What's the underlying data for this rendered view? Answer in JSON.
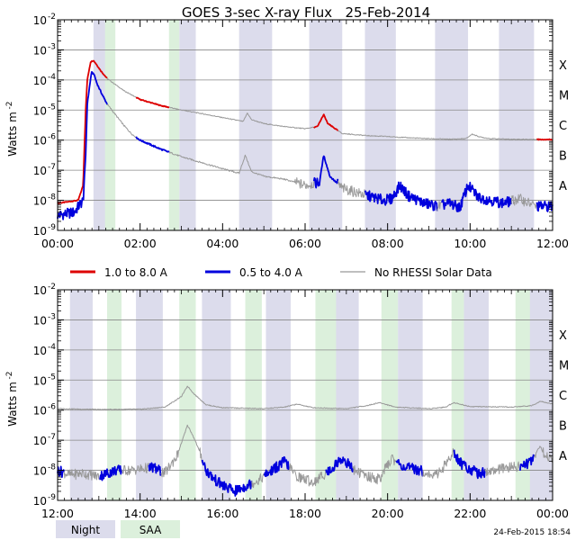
{
  "chart_data": [
    {
      "type": "line",
      "title": "GOES 3-sec X-ray Flux   25-Feb-2014",
      "ylabel": "Watts m",
      "ylabel_exp": "-2",
      "yscale": "log",
      "ylim_exp": [
        -9,
        -2
      ],
      "y_ticks": [
        {
          "base": "10",
          "exp": "-2"
        },
        {
          "base": "10",
          "exp": "-3"
        },
        {
          "base": "10",
          "exp": "-4"
        },
        {
          "base": "10",
          "exp": "-5"
        },
        {
          "base": "10",
          "exp": "-6"
        },
        {
          "base": "10",
          "exp": "-7"
        },
        {
          "base": "10",
          "exp": "-8"
        },
        {
          "base": "10",
          "exp": "-9"
        }
      ],
      "flare_classes": [
        {
          "label": "X",
          "exp": -4
        },
        {
          "label": "M",
          "exp": -5
        },
        {
          "label": "C",
          "exp": -6
        },
        {
          "label": "B",
          "exp": -7
        },
        {
          "label": "A",
          "exp": -8
        }
      ],
      "xlim_hours": [
        0,
        12
      ],
      "x_ticks": [
        "00:00",
        "02:00",
        "04:00",
        "06:00",
        "08:00",
        "10:00",
        "12:00"
      ],
      "night_bands": [
        [
          0.87,
          1.3
        ],
        [
          2.95,
          3.35
        ],
        [
          4.4,
          5.2
        ],
        [
          6.1,
          6.9
        ],
        [
          7.45,
          8.2
        ],
        [
          9.15,
          9.95
        ],
        [
          10.7,
          11.55
        ]
      ],
      "saa_bands": [
        [
          1.15,
          1.4
        ],
        [
          2.7,
          2.95
        ]
      ],
      "series": [
        {
          "name": "1.0 to 8.0 A",
          "color": "#dd0000",
          "nodata_color": "#999999",
          "points": [
            [
              0.0,
              -8.1
            ],
            [
              0.5,
              -8.0
            ],
            [
              0.62,
              -7.5
            ],
            [
              0.68,
              -5.0
            ],
            [
              0.72,
              -4.0
            ],
            [
              0.8,
              -3.4
            ],
            [
              0.87,
              -3.35
            ],
            [
              0.95,
              -3.5
            ],
            [
              1.05,
              -3.7
            ],
            [
              1.2,
              -3.95
            ],
            [
              1.4,
              -4.15
            ],
            [
              1.6,
              -4.35
            ],
            [
              1.8,
              -4.5
            ],
            [
              2.0,
              -4.65
            ],
            [
              2.5,
              -4.85
            ],
            [
              3.0,
              -5.0
            ],
            [
              3.5,
              -5.12
            ],
            [
              4.0,
              -5.25
            ],
            [
              4.5,
              -5.38
            ],
            [
              4.6,
              -5.1
            ],
            [
              4.7,
              -5.32
            ],
            [
              5.0,
              -5.45
            ],
            [
              5.5,
              -5.55
            ],
            [
              6.0,
              -5.62
            ],
            [
              6.3,
              -5.55
            ],
            [
              6.45,
              -5.15
            ],
            [
              6.55,
              -5.45
            ],
            [
              6.9,
              -5.78
            ],
            [
              7.5,
              -5.85
            ],
            [
              8.0,
              -5.88
            ],
            [
              8.5,
              -5.92
            ],
            [
              9.0,
              -5.95
            ],
            [
              9.5,
              -5.97
            ],
            [
              9.9,
              -5.95
            ],
            [
              10.05,
              -5.8
            ],
            [
              10.25,
              -5.9
            ],
            [
              10.5,
              -5.95
            ],
            [
              11.0,
              -5.97
            ],
            [
              12.0,
              -5.98
            ]
          ],
          "nodata": [
            [
              1.2,
              1.9
            ],
            [
              2.7,
              6.2
            ],
            [
              6.8,
              11.6
            ]
          ]
        },
        {
          "name": "0.5 to 4.0 A",
          "color": "#0000dd",
          "nodata_color": "#999999",
          "points": [
            [
              0.0,
              -8.5
            ],
            [
              0.4,
              -8.4
            ],
            [
              0.62,
              -8.0
            ],
            [
              0.68,
              -6.5
            ],
            [
              0.72,
              -4.8
            ],
            [
              0.82,
              -3.75
            ],
            [
              0.88,
              -3.8
            ],
            [
              0.95,
              -4.1
            ],
            [
              1.05,
              -4.4
            ],
            [
              1.2,
              -4.8
            ],
            [
              1.4,
              -5.15
            ],
            [
              1.6,
              -5.5
            ],
            [
              1.8,
              -5.8
            ],
            [
              2.0,
              -6.0
            ],
            [
              2.5,
              -6.3
            ],
            [
              3.0,
              -6.55
            ],
            [
              3.5,
              -6.75
            ],
            [
              4.0,
              -6.95
            ],
            [
              4.4,
              -7.1
            ],
            [
              4.55,
              -6.5
            ],
            [
              4.7,
              -7.05
            ],
            [
              5.0,
              -7.2
            ],
            [
              5.5,
              -7.3
            ],
            [
              6.0,
              -7.5
            ],
            [
              6.35,
              -7.4
            ],
            [
              6.45,
              -6.5
            ],
            [
              6.6,
              -7.2
            ],
            [
              6.9,
              -7.6
            ],
            [
              7.4,
              -7.8
            ],
            [
              7.9,
              -8.0
            ],
            [
              8.1,
              -7.95
            ],
            [
              8.3,
              -7.5
            ],
            [
              8.5,
              -7.85
            ],
            [
              8.9,
              -8.1
            ],
            [
              9.2,
              -8.2
            ],
            [
              9.5,
              -8.1
            ],
            [
              9.75,
              -8.25
            ],
            [
              9.95,
              -7.5
            ],
            [
              10.2,
              -7.9
            ],
            [
              10.5,
              -8.0
            ],
            [
              10.8,
              -8.1
            ],
            [
              11.2,
              -7.95
            ],
            [
              11.6,
              -8.2
            ],
            [
              12.0,
              -8.2
            ]
          ],
          "nodata": [
            [
              1.2,
              1.9
            ],
            [
              2.7,
              6.2
            ],
            [
              6.8,
              7.45
            ],
            [
              9.2,
              9.3
            ],
            [
              11.0,
              11.6
            ]
          ]
        }
      ]
    },
    {
      "type": "line",
      "title": "",
      "ylabel": "Watts m",
      "ylabel_exp": "-2",
      "yscale": "log",
      "ylim_exp": [
        -9,
        -2
      ],
      "y_ticks": [
        {
          "base": "10",
          "exp": "-2"
        },
        {
          "base": "10",
          "exp": "-3"
        },
        {
          "base": "10",
          "exp": "-4"
        },
        {
          "base": "10",
          "exp": "-5"
        },
        {
          "base": "10",
          "exp": "-6"
        },
        {
          "base": "10",
          "exp": "-7"
        },
        {
          "base": "10",
          "exp": "-8"
        },
        {
          "base": "10",
          "exp": "-9"
        }
      ],
      "flare_classes": [
        {
          "label": "X",
          "exp": -4
        },
        {
          "label": "M",
          "exp": -5
        },
        {
          "label": "C",
          "exp": -6
        },
        {
          "label": "B",
          "exp": -7
        },
        {
          "label": "A",
          "exp": -8
        }
      ],
      "xlim_hours": [
        12,
        24
      ],
      "x_ticks": [
        "12:00",
        "14:00",
        "16:00",
        "18:00",
        "20:00",
        "22:00",
        "00:00"
      ],
      "night_bands": [
        [
          12.3,
          12.85
        ],
        [
          13.9,
          14.55
        ],
        [
          15.5,
          16.2
        ],
        [
          17.05,
          17.65
        ],
        [
          18.6,
          19.3
        ],
        [
          20.25,
          20.85
        ],
        [
          21.85,
          22.45
        ],
        [
          23.4,
          24.0
        ]
      ],
      "saa_bands": [
        [
          13.2,
          13.55
        ],
        [
          14.95,
          15.35
        ],
        [
          16.55,
          16.95
        ],
        [
          18.25,
          18.75
        ],
        [
          19.85,
          20.25
        ],
        [
          21.55,
          21.85
        ],
        [
          23.1,
          23.45
        ]
      ],
      "series": [
        {
          "name": "1.0 to 8.0 A",
          "color": "#dd0000",
          "nodata_color": "#999999",
          "points": [
            [
              12.0,
              -5.95
            ],
            [
              13.0,
              -5.98
            ],
            [
              14.0,
              -5.97
            ],
            [
              14.6,
              -5.9
            ],
            [
              15.0,
              -5.55
            ],
            [
              15.15,
              -5.2
            ],
            [
              15.3,
              -5.45
            ],
            [
              15.6,
              -5.82
            ],
            [
              16.0,
              -5.92
            ],
            [
              17.0,
              -5.95
            ],
            [
              17.5,
              -5.9
            ],
            [
              17.8,
              -5.8
            ],
            [
              18.2,
              -5.92
            ],
            [
              19.0,
              -5.95
            ],
            [
              19.5,
              -5.85
            ],
            [
              19.8,
              -5.75
            ],
            [
              20.2,
              -5.9
            ],
            [
              21.0,
              -5.95
            ],
            [
              21.4,
              -5.9
            ],
            [
              21.6,
              -5.75
            ],
            [
              22.0,
              -5.88
            ],
            [
              23.0,
              -5.9
            ],
            [
              23.5,
              -5.85
            ],
            [
              23.7,
              -5.7
            ],
            [
              24.0,
              -5.8
            ]
          ],
          "nodata": [
            [
              12.0,
              24.0
            ]
          ]
        },
        {
          "name": "0.5 to 4.0 A",
          "color": "#0000dd",
          "nodata_color": "#999999",
          "points": [
            [
              12.0,
              -8.0
            ],
            [
              12.3,
              -8.15
            ],
            [
              12.6,
              -8.1
            ],
            [
              13.0,
              -8.2
            ],
            [
              13.4,
              -8.0
            ],
            [
              13.8,
              -8.0
            ],
            [
              14.3,
              -7.9
            ],
            [
              14.6,
              -8.1
            ],
            [
              14.9,
              -7.5
            ],
            [
              15.05,
              -6.9
            ],
            [
              15.15,
              -6.5
            ],
            [
              15.3,
              -6.9
            ],
            [
              15.45,
              -7.4
            ],
            [
              15.6,
              -8.0
            ],
            [
              15.8,
              -8.3
            ],
            [
              16.0,
              -8.5
            ],
            [
              16.3,
              -8.7
            ],
            [
              16.6,
              -8.5
            ],
            [
              16.9,
              -8.3
            ],
            [
              17.2,
              -8.0
            ],
            [
              17.5,
              -7.7
            ],
            [
              17.8,
              -8.2
            ],
            [
              18.2,
              -8.4
            ],
            [
              18.6,
              -8.0
            ],
            [
              18.9,
              -7.6
            ],
            [
              19.2,
              -8.0
            ],
            [
              19.5,
              -8.2
            ],
            [
              19.8,
              -8.3
            ],
            [
              20.1,
              -7.6
            ],
            [
              20.4,
              -7.9
            ],
            [
              20.8,
              -8.0
            ],
            [
              21.1,
              -8.2
            ],
            [
              21.3,
              -8.0
            ],
            [
              21.6,
              -7.4
            ],
            [
              21.8,
              -7.8
            ],
            [
              22.2,
              -8.1
            ],
            [
              22.6,
              -8.0
            ],
            [
              23.0,
              -7.9
            ],
            [
              23.4,
              -7.8
            ],
            [
              23.7,
              -7.2
            ],
            [
              23.8,
              -7.5
            ],
            [
              24.0,
              -7.6
            ]
          ],
          "nodata": [
            [
              12.15,
              13.0
            ],
            [
              13.55,
              14.2
            ],
            [
              14.5,
              15.5
            ],
            [
              16.7,
              17.0
            ],
            [
              17.6,
              18.5
            ],
            [
              19.15,
              20.2
            ],
            [
              20.85,
              21.6
            ],
            [
              22.35,
              23.2
            ],
            [
              23.55,
              24.0
            ]
          ]
        }
      ]
    }
  ],
  "legend": [
    {
      "label": "1.0 to 8.0 A",
      "color": "#dd0000"
    },
    {
      "label": "0.5 to 4.0 A",
      "color": "#0000dd"
    },
    {
      "label": "No RHESSI Solar Data",
      "color": "#999999"
    }
  ],
  "band_legend": [
    {
      "label": "Night",
      "color": "#dcdcec"
    },
    {
      "label": "SAA",
      "color": "#dcf0dc"
    }
  ],
  "footer_timestamp": "24-Feb-2015 18:54"
}
